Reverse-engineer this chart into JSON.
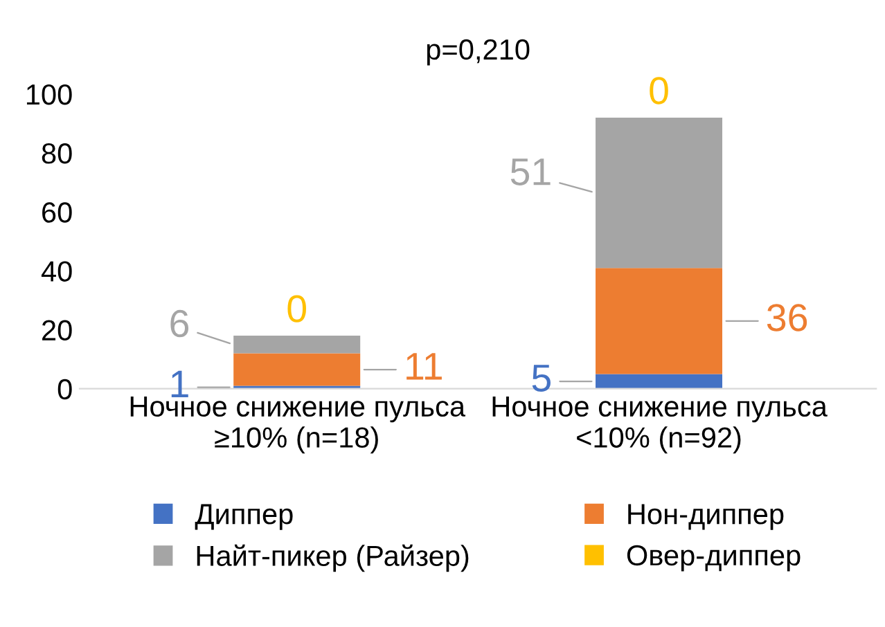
{
  "chart_data": {
    "type": "bar",
    "title": "p=0,210",
    "stacked": true,
    "categories": [
      "Ночное снижение пульса\n≥10% (n=18)",
      "Ночное снижение пульса\n<10% (n=92)"
    ],
    "series": [
      {
        "name": "Диппер",
        "color": "#4472c4",
        "values": [
          1,
          5
        ]
      },
      {
        "name": "Нон-диппер",
        "color": "#ed7d31",
        "values": [
          11,
          36
        ]
      },
      {
        "name": "Найт-пикер (Райзер)",
        "color": "#a5a5a5",
        "values": [
          6,
          51
        ]
      },
      {
        "name": "Овер-диппер",
        "color": "#ffc000",
        "values": [
          0,
          0
        ]
      }
    ],
    "ylim": [
      0,
      100
    ],
    "yticks": [
      0,
      20,
      40,
      60,
      80,
      100
    ],
    "grid": false,
    "legend": "bottom",
    "data_labels": true
  }
}
